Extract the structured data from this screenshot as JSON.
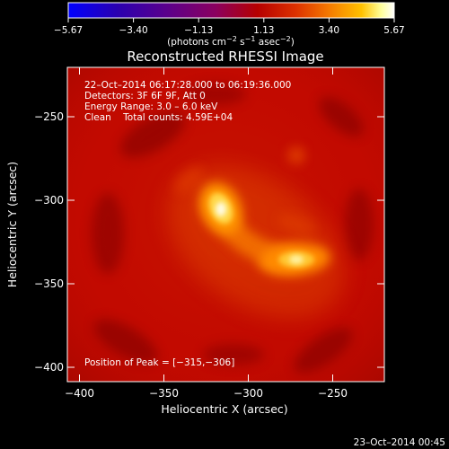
{
  "colorbar": {
    "ticks": [
      "−5.67",
      "−3.40",
      "−1.13",
      "1.13",
      "3.40",
      "5.67"
    ],
    "units_prefix": "(photons cm",
    "units_exp1": "−2",
    "units_mid1": " s",
    "units_exp2": "−1",
    "units_mid2": " asec",
    "units_exp3": "−2",
    "units_suffix": ")"
  },
  "plot": {
    "title": "Reconstructed RHESSI Image",
    "xlabel": "Heliocentric X (arcsec)",
    "ylabel": "Heliocentric Y (arcsec)",
    "xticks": [
      "−400",
      "−350",
      "−300",
      "−250"
    ],
    "yticks": [
      "−250",
      "−300",
      "−350",
      "−400"
    ],
    "xlim": [
      -407,
      -218
    ],
    "ylim": [
      -412,
      -224
    ],
    "info_lines": [
      "22–Oct–2014 06:17:28.000 to 06:19:36.000",
      "Detectors: 3F 6F 9F, Att 0",
      "Energy Range: 3.0 – 6.0 keV",
      "Clean    Total counts: 4.59E+04"
    ],
    "peak_label": "Position of Peak = [−315,−306]",
    "peak": [
      -315,
      -306
    ],
    "secondary_source": [
      -272,
      -337
    ]
  },
  "timestamp": "23–Oct–2014 00:45",
  "colors": {
    "background": "#000000",
    "colormap": [
      "#0000ff",
      "#2a00b0",
      "#5a008c",
      "#8a0060",
      "#b60000",
      "#dd3200",
      "#f57a00",
      "#ffc100",
      "#ffff9a",
      "#ffffff"
    ]
  }
}
